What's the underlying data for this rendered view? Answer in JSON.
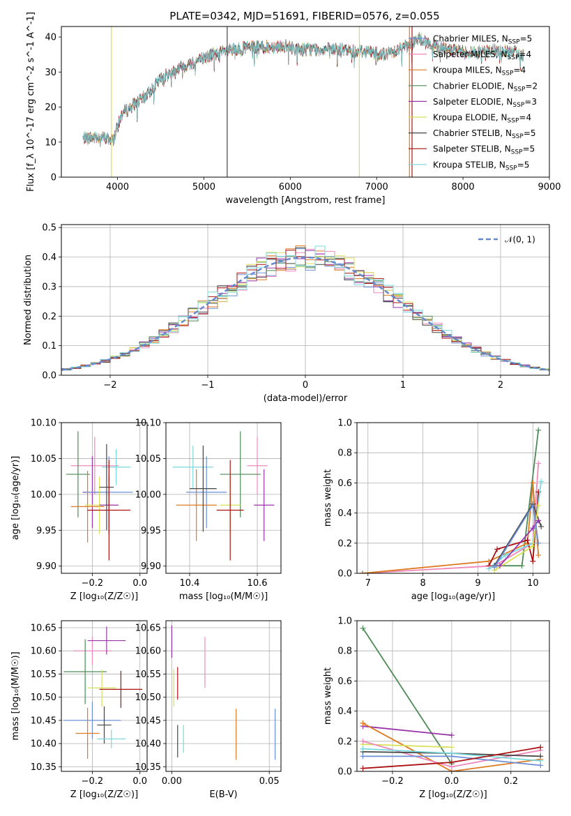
{
  "figure_title": "PLATE=0342, MJD=51691, FIBERID=0576, z=0.055",
  "colors": {
    "chabrier_miles": "#6b8fd6",
    "salpeter_miles": "#ee88bb",
    "kroupa_miles": "#dd7a22",
    "chabrier_elodie": "#4d8a55",
    "salpeter_elodie": "#9933aa",
    "kroupa_elodie": "#d8e055",
    "chabrier_stelib": "#444444",
    "salpeter_stelib": "#aa1111",
    "kroupa_stelib": "#77d9dd",
    "grid": "#b0b0b0",
    "normal": "#6688cc"
  },
  "chart_data": [
    {
      "id": "spectrum",
      "type": "line",
      "title": "PLATE=0342, MJD=51691, FIBERID=0576, z=0.055",
      "xlabel": "wavelength [Angstrom, rest frame]",
      "ylabel": "Flux [f_λ 10^-17 erg cm^-2 s^-1 A^-1]",
      "xlim": [
        3350,
        9000
      ],
      "ylim": [
        0,
        43
      ],
      "xticks": [
        4000,
        5000,
        6000,
        7000,
        8000,
        9000
      ],
      "yticks": [
        0,
        10,
        20,
        30,
        40
      ],
      "grid": false,
      "legend_position": "upper-right",
      "continuum": [
        [
          3600,
          11
        ],
        [
          3800,
          11.5
        ],
        [
          3950,
          10.5
        ],
        [
          4050,
          18
        ],
        [
          4150,
          20
        ],
        [
          4300,
          22.5
        ],
        [
          4500,
          28
        ],
        [
          4700,
          31
        ],
        [
          4900,
          33
        ],
        [
          5100,
          35
        ],
        [
          5300,
          36
        ],
        [
          5500,
          37
        ],
        [
          5700,
          37
        ],
        [
          5900,
          37.5
        ],
        [
          6100,
          36.5
        ],
        [
          6300,
          36.5
        ],
        [
          6500,
          36.5
        ],
        [
          6700,
          36
        ],
        [
          6900,
          36
        ],
        [
          7100,
          35
        ],
        [
          7300,
          37
        ],
        [
          7500,
          39.5
        ],
        [
          7700,
          37
        ],
        [
          7900,
          36
        ],
        [
          8100,
          35.5
        ],
        [
          8300,
          36
        ],
        [
          8500,
          36
        ],
        [
          8700,
          35
        ]
      ],
      "series": [
        {
          "name": "Chabrier MILES, N_SSP=5",
          "legend": "Chabrier MILES, N",
          "ssp": "5",
          "color_key": "chabrier_miles"
        },
        {
          "name": "Salpeter MILES, N_SSP=4",
          "legend": "Salpeter MILES, N",
          "ssp": "4",
          "color_key": "salpeter_miles"
        },
        {
          "name": "Kroupa MILES, N_SSP=4",
          "legend": "Kroupa MILES, N",
          "ssp": "4",
          "color_key": "kroupa_miles"
        },
        {
          "name": "Chabrier ELODIE, N_SSP=2",
          "legend": "Chabrier ELODIE, N",
          "ssp": "2",
          "color_key": "chabrier_elodie"
        },
        {
          "name": "Salpeter ELODIE, N_SSP=3",
          "legend": "Salpeter ELODIE, N",
          "ssp": "3",
          "color_key": "salpeter_elodie"
        },
        {
          "name": "Kroupa ELODIE, N_SSP=4",
          "legend": "Kroupa ELODIE, N",
          "ssp": "4",
          "color_key": "kroupa_elodie"
        },
        {
          "name": "Chabrier STELIB, N_SSP=5",
          "legend": "Chabrier STELIB, N",
          "ssp": "5",
          "color_key": "chabrier_stelib"
        },
        {
          "name": "Salpeter STELIB, N_SSP=5",
          "legend": "Salpeter STELIB, N",
          "ssp": "5",
          "color_key": "salpeter_stelib"
        },
        {
          "name": "Kroupa STELIB, N_SSP=5",
          "legend": "Kroupa STELIB, N",
          "ssp": "5",
          "color_key": "kroupa_stelib"
        }
      ],
      "vertical_lines": [
        {
          "x": 3930,
          "color_key": "kroupa_elodie"
        },
        {
          "x": 5270,
          "color_key": "chabrier_stelib"
        },
        {
          "x": 6800,
          "color_key": "kroupa_elodie"
        },
        {
          "x": 7380,
          "color_key": "kroupa_miles"
        },
        {
          "x": 7410,
          "color_key": "salpeter_stelib"
        }
      ]
    },
    {
      "id": "residuals",
      "type": "bar",
      "xlabel": "(data-model)/error",
      "ylabel": "Normed distribution",
      "xlim": [
        -2.5,
        2.5
      ],
      "ylim": [
        0,
        0.51
      ],
      "xticks": [
        -2,
        -1,
        0,
        1,
        2
      ],
      "yticks": [
        0.0,
        0.1,
        0.2,
        0.3,
        0.4,
        0.5
      ],
      "grid": true,
      "legend_position": "upper-right",
      "legend": "𝒩(0, 1)",
      "bin_width": 0.1,
      "normal_curve": {
        "mean": 0,
        "sigma": 1
      }
    },
    {
      "id": "age_vs_Z",
      "type": "scatter",
      "xlabel": "Z [log₁₀(Z/Z☉)]",
      "ylabel": "age  [log₁₀(age/yr)]",
      "xlim": [
        -0.33,
        0.03
      ],
      "ylim": [
        9.89,
        10.1
      ],
      "xticks": [
        -0.2,
        0.0
      ],
      "yticks": [
        9.9,
        9.95,
        10.0,
        10.05,
        10.1
      ],
      "grid": true,
      "points": [
        {
          "x": -0.19,
          "y": 10.04,
          "xerr": 0.1,
          "yerr": 0.04,
          "color_key": "salpeter_miles"
        },
        {
          "x": -0.2,
          "y": 10.003,
          "xerr": 0.04,
          "yerr": 0.05,
          "color_key": "salpeter_elodie"
        },
        {
          "x": -0.26,
          "y": 10.028,
          "xerr": 0.05,
          "yerr": 0.06,
          "color_key": "chabrier_elodie"
        },
        {
          "x": -0.1,
          "y": 10.038,
          "xerr": 0.06,
          "yerr": 0.025,
          "color_key": "kroupa_stelib"
        },
        {
          "x": -0.13,
          "y": 10.003,
          "xerr": 0.1,
          "yerr": 0.05,
          "color_key": "chabrier_miles"
        },
        {
          "x": -0.22,
          "y": 9.983,
          "xerr": 0.07,
          "yerr": 0.05,
          "color_key": "kroupa_miles"
        },
        {
          "x": -0.17,
          "y": 9.985,
          "xerr": 0.06,
          "yerr": 0.04,
          "color_key": "kroupa_elodie"
        },
        {
          "x": -0.13,
          "y": 9.985,
          "xerr": 0.04,
          "yerr": 0.04,
          "color_key": "salpeter_elodie"
        },
        {
          "x": -0.14,
          "y": 10.01,
          "xerr": 0.03,
          "yerr": 0.06,
          "color_key": "chabrier_stelib"
        },
        {
          "x": -0.13,
          "y": 9.978,
          "xerr": 0.09,
          "yerr": 0.07,
          "color_key": "salpeter_stelib"
        }
      ]
    },
    {
      "id": "age_vs_mass",
      "type": "scatter",
      "xlabel": "mass [log₁₀(M/M☉)]",
      "ylabel": "",
      "xlim": [
        10.33,
        10.67
      ],
      "ylim": [
        9.89,
        10.1
      ],
      "xticks": [
        10.4,
        10.6
      ],
      "yticks": [
        9.9,
        9.95,
        10.0,
        10.05,
        10.1
      ],
      "grid": true,
      "points": [
        {
          "x": 10.6,
          "y": 10.04,
          "xerr": 0.03,
          "yerr": 0.04,
          "color_key": "salpeter_miles"
        },
        {
          "x": 10.62,
          "y": 9.985,
          "xerr": 0.03,
          "yerr": 0.05,
          "color_key": "salpeter_elodie"
        },
        {
          "x": 10.55,
          "y": 10.028,
          "xerr": 0.06,
          "yerr": 0.06,
          "color_key": "chabrier_elodie"
        },
        {
          "x": 10.41,
          "y": 10.038,
          "xerr": 0.06,
          "yerr": 0.03,
          "color_key": "kroupa_stelib"
        },
        {
          "x": 10.45,
          "y": 10.003,
          "xerr": 0.06,
          "yerr": 0.05,
          "color_key": "chabrier_miles"
        },
        {
          "x": 10.42,
          "y": 9.985,
          "xerr": 0.06,
          "yerr": 0.05,
          "color_key": "kroupa_miles"
        },
        {
          "x": 10.52,
          "y": 9.985,
          "xerr": 0.03,
          "yerr": 0.04,
          "color_key": "kroupa_elodie"
        },
        {
          "x": 10.44,
          "y": 10.008,
          "xerr": 0.04,
          "yerr": 0.06,
          "color_key": "chabrier_stelib"
        },
        {
          "x": 10.52,
          "y": 9.978,
          "xerr": 0.04,
          "yerr": 0.07,
          "color_key": "salpeter_stelib"
        }
      ]
    },
    {
      "id": "weight_vs_age",
      "type": "line",
      "xlabel": "age  [log₁₀(age/yr)]",
      "ylabel": "mass weight",
      "xlim": [
        6.8,
        10.3
      ],
      "ylim": [
        0,
        1.0
      ],
      "xticks": [
        7,
        8,
        9,
        10
      ],
      "yticks": [
        0.0,
        0.2,
        0.4,
        0.6,
        0.8,
        1.0
      ],
      "grid": true,
      "series": [
        {
          "color_key": "chabrier_elodie",
          "points": [
            [
              9.3,
              0.05
            ],
            [
              9.8,
              0.05
            ],
            [
              10.1,
              0.95
            ]
          ]
        },
        {
          "color_key": "salpeter_miles",
          "points": [
            [
              6.9,
              0.0
            ],
            [
              9.3,
              0.05
            ],
            [
              10.0,
              0.2
            ],
            [
              10.1,
              0.73
            ]
          ]
        },
        {
          "color_key": "kroupa_miles",
          "points": [
            [
              6.9,
              0.0
            ],
            [
              9.2,
              0.08
            ],
            [
              9.9,
              0.2
            ],
            [
              10.0,
              0.6
            ],
            [
              10.1,
              0.12
            ]
          ]
        },
        {
          "color_key": "salpeter_stelib",
          "points": [
            [
              9.2,
              0.05
            ],
            [
              9.35,
              0.16
            ],
            [
              9.9,
              0.22
            ],
            [
              10.0,
              0.08
            ],
            [
              10.1,
              0.54
            ]
          ]
        },
        {
          "color_key": "kroupa_stelib",
          "points": [
            [
              9.2,
              0.03
            ],
            [
              9.5,
              0.12
            ],
            [
              10.0,
              0.2
            ],
            [
              10.15,
              0.61
            ]
          ]
        },
        {
          "color_key": "chabrier_stelib",
          "points": [
            [
              9.3,
              0.05
            ],
            [
              10.0,
              0.46
            ],
            [
              10.15,
              0.31
            ]
          ]
        },
        {
          "color_key": "kroupa_elodie",
          "points": [
            [
              9.3,
              0.02
            ],
            [
              10.0,
              0.18
            ],
            [
              10.1,
              0.45
            ]
          ]
        },
        {
          "color_key": "salpeter_elodie",
          "points": [
            [
              9.4,
              0.05
            ],
            [
              10.0,
              0.3
            ],
            [
              10.1,
              0.35
            ]
          ]
        },
        {
          "color_key": "chabrier_miles",
          "points": [
            [
              9.3,
              0.04
            ],
            [
              10.0,
              0.45
            ],
            [
              10.1,
              0.2
            ]
          ]
        }
      ]
    },
    {
      "id": "mass_vs_Z",
      "type": "scatter",
      "xlabel": "Z [log₁₀(Z/Z☉)]",
      "ylabel": "mass [log₁₀(M/M☉)]",
      "xlim": [
        -0.33,
        0.03
      ],
      "ylim": [
        10.34,
        10.665
      ],
      "xticks": [
        -0.2,
        0.0
      ],
      "yticks": [
        10.35,
        10.4,
        10.45,
        10.5,
        10.55,
        10.6,
        10.65
      ],
      "grid": true,
      "points": [
        {
          "x": -0.2,
          "y": 10.6,
          "xerr": 0.08,
          "yerr": 0.03,
          "color_key": "salpeter_miles"
        },
        {
          "x": -0.14,
          "y": 10.622,
          "xerr": 0.08,
          "yerr": 0.03,
          "color_key": "salpeter_elodie"
        },
        {
          "x": -0.23,
          "y": 10.555,
          "xerr": 0.09,
          "yerr": 0.07,
          "color_key": "chabrier_elodie"
        },
        {
          "x": -0.16,
          "y": 10.52,
          "xerr": 0.06,
          "yerr": 0.04,
          "color_key": "kroupa_elodie"
        },
        {
          "x": -0.08,
          "y": 10.517,
          "xerr": 0.09,
          "yerr": 0.04,
          "color_key": "salpeter_stelib"
        },
        {
          "x": -0.2,
          "y": 10.45,
          "xerr": 0.12,
          "yerr": 0.04,
          "color_key": "chabrier_miles"
        },
        {
          "x": -0.22,
          "y": 10.422,
          "xerr": 0.05,
          "yerr": 0.055,
          "color_key": "kroupa_miles"
        },
        {
          "x": -0.15,
          "y": 10.44,
          "xerr": 0.03,
          "yerr": 0.04,
          "color_key": "chabrier_stelib"
        },
        {
          "x": -0.12,
          "y": 10.41,
          "xerr": 0.06,
          "yerr": 0.02,
          "color_key": "kroupa_stelib"
        }
      ]
    },
    {
      "id": "mass_vs_ebv",
      "type": "scatter",
      "xlabel": "E(B-V)",
      "ylabel": "",
      "xlim": [
        -0.003,
        0.056
      ],
      "ylim": [
        10.34,
        10.665
      ],
      "xticks": [
        0.0,
        0.05
      ],
      "yticks": [
        10.35,
        10.4,
        10.45,
        10.5,
        10.55,
        10.6,
        10.65
      ],
      "grid": true,
      "points": [
        {
          "x": 0.0,
          "y": 10.62,
          "xerr": 0,
          "yerr": 0.035,
          "color_key": "salpeter_elodie"
        },
        {
          "x": 0.001,
          "y": 10.52,
          "xerr": 0,
          "yerr": 0.04,
          "color_key": "kroupa_elodie"
        },
        {
          "x": 0.003,
          "y": 10.53,
          "xerr": 0,
          "yerr": 0.035,
          "color_key": "salpeter_stelib"
        },
        {
          "x": 0.003,
          "y": 10.405,
          "xerr": 0,
          "yerr": 0.035,
          "color_key": "chabrier_stelib"
        },
        {
          "x": 0.006,
          "y": 10.41,
          "xerr": 0,
          "yerr": 0.03,
          "color_key": "kroupa_stelib"
        },
        {
          "x": 0.017,
          "y": 10.575,
          "xerr": 0,
          "yerr": 0.055,
          "color_key": "salpeter_miles"
        },
        {
          "x": 0.033,
          "y": 10.42,
          "xerr": 0,
          "yerr": 0.055,
          "color_key": "kroupa_miles"
        },
        {
          "x": 0.053,
          "y": 10.42,
          "xerr": 0,
          "yerr": 0.055,
          "color_key": "chabrier_miles"
        }
      ]
    },
    {
      "id": "weight_vs_Z",
      "type": "line",
      "xlabel": "Z [log₁₀(Z/Z☉)]",
      "ylabel": "mass weight",
      "xlim": [
        -0.32,
        0.33
      ],
      "ylim": [
        0,
        1.0
      ],
      "xticks": [
        -0.2,
        0.0,
        0.2
      ],
      "yticks": [
        0.0,
        0.2,
        0.4,
        0.6,
        0.8,
        1.0
      ],
      "grid": true,
      "series": [
        {
          "color_key": "chabrier_elodie",
          "points": [
            [
              -0.3,
              0.95
            ],
            [
              0.0,
              0.05
            ]
          ]
        },
        {
          "color_key": "salpeter_elodie",
          "points": [
            [
              -0.3,
              0.3
            ],
            [
              0.0,
              0.24
            ]
          ]
        },
        {
          "color_key": "kroupa_miles",
          "points": [
            [
              -0.3,
              0.32
            ],
            [
              0.0,
              0.0
            ],
            [
              0.3,
              0.08
            ]
          ]
        },
        {
          "color_key": "kroupa_elodie",
          "points": [
            [
              -0.3,
              0.18
            ],
            [
              0.0,
              0.16
            ]
          ]
        },
        {
          "color_key": "salpeter_miles",
          "points": [
            [
              -0.3,
              0.2
            ],
            [
              0.0,
              0.03
            ],
            [
              0.3,
              0.14
            ]
          ]
        },
        {
          "color_key": "chabrier_stelib",
          "points": [
            [
              -0.3,
              0.13
            ],
            [
              0.0,
              0.12
            ],
            [
              0.3,
              0.1
            ]
          ]
        },
        {
          "color_key": "kroupa_stelib",
          "points": [
            [
              -0.3,
              0.15
            ],
            [
              0.0,
              0.12
            ],
            [
              0.3,
              0.07
            ]
          ]
        },
        {
          "color_key": "chabrier_miles",
          "points": [
            [
              -0.3,
              0.1
            ],
            [
              0.0,
              0.1
            ],
            [
              0.3,
              0.04
            ]
          ]
        },
        {
          "color_key": "salpeter_stelib",
          "points": [
            [
              -0.3,
              0.02
            ],
            [
              0.0,
              0.06
            ],
            [
              0.3,
              0.16
            ]
          ]
        }
      ],
      "marker_stacks": [
        {
          "x": -0.3,
          "values": [
            0.95,
            0.73,
            0.61,
            0.53,
            0.47,
            0.3,
            0.2,
            0.15,
            0.1,
            0.05,
            0.02
          ]
        },
        {
          "x": 0.0,
          "values": [
            0.24,
            0.16,
            0.12,
            0.06,
            0.0
          ]
        },
        {
          "x": 0.3,
          "values": [
            0.16,
            0.1,
            0.07,
            0.04
          ]
        }
      ]
    }
  ]
}
